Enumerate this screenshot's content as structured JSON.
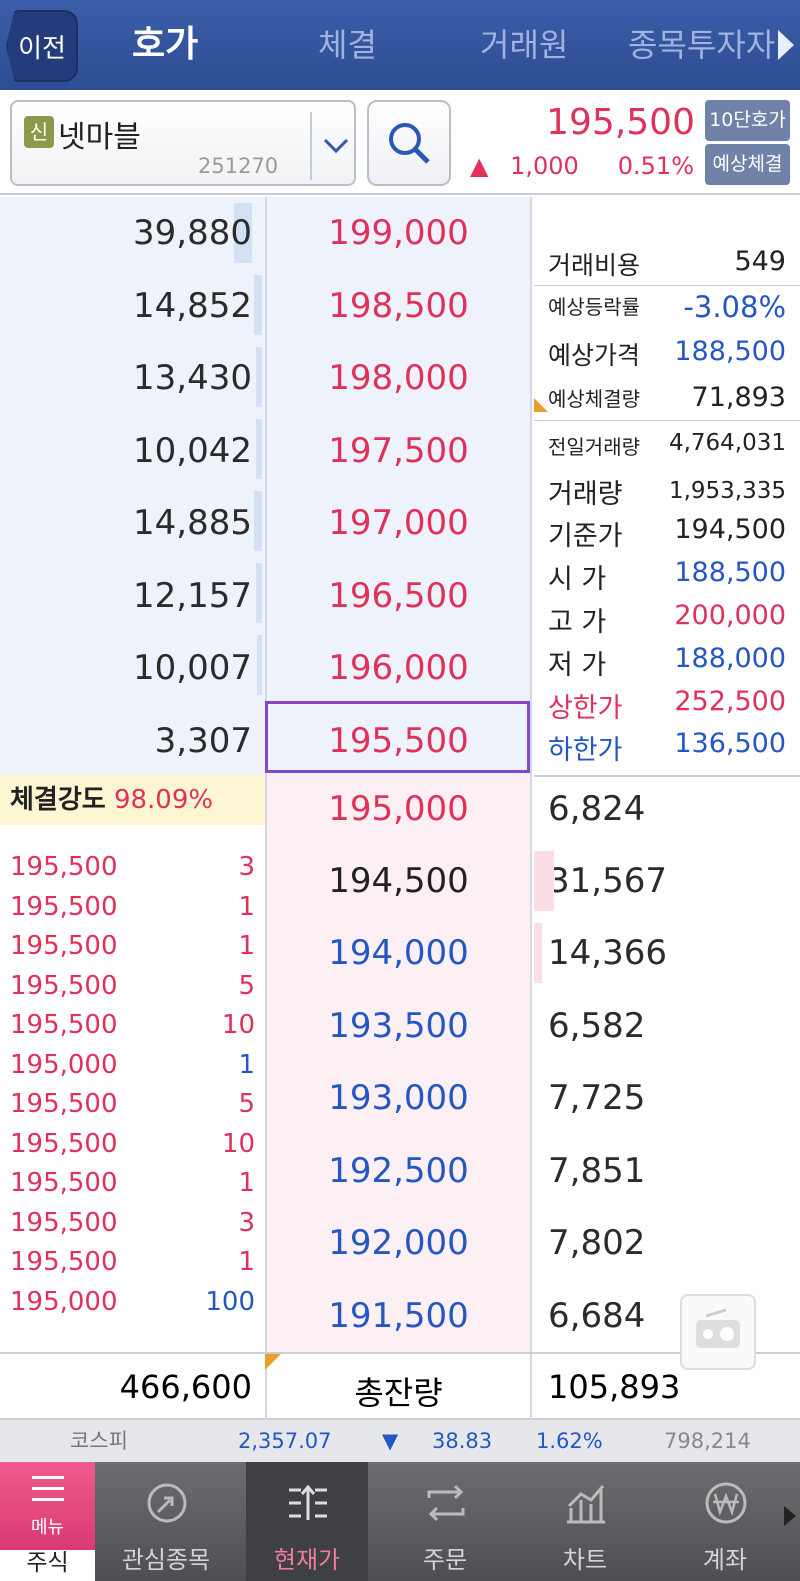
{
  "header": {
    "back_label": "이전",
    "tabs": [
      "호가",
      "체결",
      "거래원",
      "종목투자자"
    ]
  },
  "stock": {
    "badge": "신",
    "name": "넷마블",
    "code": "251270",
    "price": "195,500",
    "change_arrow": "▲",
    "change": "1,000",
    "change_pct": "0.51%",
    "btn_10": "10단호가",
    "btn_expected": "예상체결"
  },
  "asks": [
    {
      "qty": "39,880",
      "price": "199,000"
    },
    {
      "qty": "14,852",
      "price": "198,500"
    },
    {
      "qty": "13,430",
      "price": "198,000"
    },
    {
      "qty": "10,042",
      "price": "197,500"
    },
    {
      "qty": "14,885",
      "price": "197,000"
    },
    {
      "qty": "12,157",
      "price": "196,500"
    },
    {
      "qty": "10,007",
      "price": "196,000"
    },
    {
      "qty": "3,307",
      "price": "195,500"
    }
  ],
  "bids": [
    {
      "price": "195,000",
      "qty": "6,824"
    },
    {
      "price": "194,500",
      "qty": "31,567"
    },
    {
      "price": "194,000",
      "qty": "14,366"
    },
    {
      "price": "193,500",
      "qty": "6,582"
    },
    {
      "price": "193,000",
      "qty": "7,725"
    },
    {
      "price": "192,500",
      "qty": "7,851"
    },
    {
      "price": "192,000",
      "qty": "7,802"
    },
    {
      "price": "191,500",
      "qty": "6,684"
    }
  ],
  "info": {
    "cost_label": "거래비용",
    "cost": "549",
    "exp_rate_label": "예상등락률",
    "exp_rate": "-3.08%",
    "exp_price_label": "예상가격",
    "exp_price": "188,500",
    "exp_vol_label": "예상체결량",
    "exp_vol": "71,893",
    "prev_vol_label": "전일거래량",
    "prev_vol": "4,764,031",
    "vol_label": "거래량",
    "vol": "1,953,335",
    "base_label": "기준가",
    "base": "194,500",
    "open_label": "시  가",
    "open": "188,500",
    "high_label": "고  가",
    "high": "200,000",
    "low_label": "저  가",
    "low": "188,000",
    "upper_label": "상한가",
    "upper": "252,500",
    "lower_label": "하한가",
    "lower": "136,500"
  },
  "strength": {
    "label": "체결강도",
    "value": "98.09%"
  },
  "trades": [
    {
      "p": "195,500",
      "q": "3",
      "c": "r"
    },
    {
      "p": "195,500",
      "q": "1",
      "c": "r"
    },
    {
      "p": "195,500",
      "q": "1",
      "c": "r"
    },
    {
      "p": "195,500",
      "q": "5",
      "c": "r"
    },
    {
      "p": "195,500",
      "q": "10",
      "c": "r"
    },
    {
      "p": "195,000",
      "q": "1",
      "c": "b"
    },
    {
      "p": "195,500",
      "q": "5",
      "c": "r"
    },
    {
      "p": "195,500",
      "q": "10",
      "c": "r"
    },
    {
      "p": "195,500",
      "q": "1",
      "c": "r"
    },
    {
      "p": "195,500",
      "q": "3",
      "c": "r"
    },
    {
      "p": "195,500",
      "q": "1",
      "c": "r"
    },
    {
      "p": "195,000",
      "q": "100",
      "c": "b"
    }
  ],
  "totals": {
    "ask_total": "466,600",
    "label": "총잔량",
    "bid_total": "105,893"
  },
  "index": {
    "name": "코스피",
    "value": "2,357.07",
    "arrow": "▼",
    "change": "38.83",
    "pct": "1.62%",
    "volume": "798,214"
  },
  "nav": {
    "menu": "메뉴",
    "menu_sub": "주식",
    "items": [
      "관심종목",
      "현재가",
      "주문",
      "차트",
      "계좌"
    ]
  },
  "colors": {
    "up": "#e0315a",
    "down": "#2457c4",
    "header": "#2d4d93",
    "selected": "#8847c9"
  }
}
